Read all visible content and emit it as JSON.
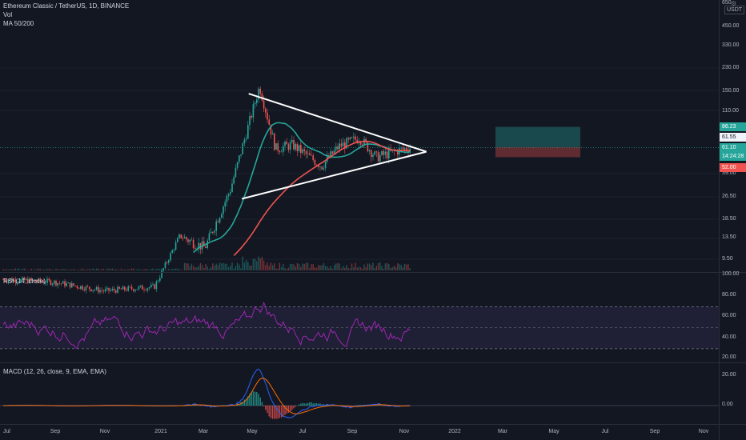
{
  "header": {
    "symbol_line": "Ethereum Classic / TetherUS, 1D, BINANCE",
    "vol_label": "Vol",
    "ma_label": "MA 50/200"
  },
  "price_scale": {
    "currency": "USDT",
    "ticks": [
      "650",
      "450.00",
      "330.00",
      "230.00",
      "150.00",
      "110.00",
      "39.00",
      "26.50",
      "18.50",
      "13.50",
      "9.50"
    ],
    "tags": {
      "target": "86.23",
      "ma_value": "61.55",
      "last_price": "61.10",
      "countdown": "14:24:28",
      "stop": "52.00"
    }
  },
  "rsi": {
    "label": "RSI (14, close)",
    "ticks": [
      "100.00",
      "80.00",
      "60.00",
      "40.00",
      "20.00"
    ],
    "upper_band": 70,
    "lower_band": 30
  },
  "macd": {
    "label": "MACD (12, 26, close, 9, EMA, EMA)",
    "ticks": [
      "20.00",
      "0.00"
    ]
  },
  "time_axis": [
    "Jul",
    "Sep",
    "Nov",
    "2021",
    "Mar",
    "May",
    "Jul",
    "Sep",
    "Nov",
    "2022",
    "Mar",
    "May",
    "Jul",
    "Sep",
    "Nov"
  ],
  "chart_data": {
    "type": "line",
    "title": "Ethereum Classic / TetherUS, 1D, BINANCE",
    "price_points_usdt": [
      [
        "2020-07",
        6.8
      ],
      [
        "2020-09",
        6.5
      ],
      [
        "2020-11",
        5.6
      ],
      [
        "2021-01",
        6.0
      ],
      [
        "2021-02",
        14.0
      ],
      [
        "2021-03",
        11.5
      ],
      [
        "2021-04",
        30
      ],
      [
        "2021-05-06",
        170
      ],
      [
        "2021-05-25",
        60
      ],
      [
        "2021-06-15",
        64
      ],
      [
        "2021-07-20",
        45
      ],
      [
        "2021-08-10",
        62
      ],
      [
        "2021-09-05",
        72
      ],
      [
        "2021-09-25",
        52
      ],
      [
        "2021-10-20",
        58
      ],
      [
        "2021-11-05",
        61.1
      ]
    ],
    "moving_averages": [
      {
        "name": "MA 50",
        "color": "#26a69a"
      },
      {
        "name": "MA 200",
        "color": "#ef5350"
      }
    ],
    "triangle_upper": [
      [
        "2021-04-25",
        150
      ],
      [
        "2021-11-15",
        57
      ]
    ],
    "triangle_lower": [
      [
        "2021-04-15",
        26
      ],
      [
        "2021-11-15",
        57
      ]
    ],
    "position": {
      "target": 86.23,
      "entry": 61.55,
      "stop": 52.0
    },
    "rsi_range": [
      0,
      100
    ],
    "macd_range": [
      -15,
      30
    ]
  },
  "colors": {
    "background": "#131722",
    "up": "#26a69a",
    "down": "#ef5350",
    "rsi_line": "#9c27b0",
    "macd_line": "#2962ff",
    "signal_line": "#ff6d00"
  }
}
